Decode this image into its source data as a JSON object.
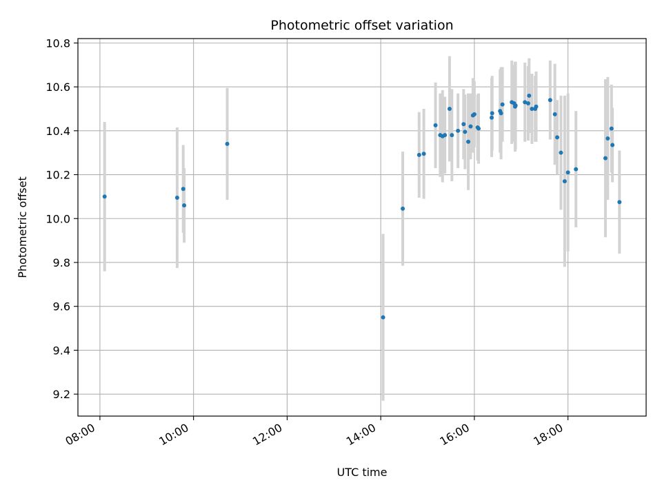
{
  "chart_data": {
    "type": "scatter",
    "title": "Photometric offset variation",
    "xlabel": "UTC time",
    "ylabel": "Photometric offset",
    "x_ticks": [
      "08:00",
      "10:00",
      "12:00",
      "14:00",
      "16:00",
      "18:00"
    ],
    "y_ticks": [
      "9.2",
      "9.4",
      "9.6",
      "9.8",
      "10.0",
      "10.2",
      "10.4",
      "10.6",
      "10.8"
    ],
    "x_tick_hours": [
      8,
      10,
      12,
      14,
      16,
      18
    ],
    "y_tick_values": [
      9.2,
      9.4,
      9.6,
      9.8,
      10.0,
      10.2,
      10.4,
      10.6,
      10.8
    ],
    "xlim_hours": [
      7.53,
      19.67
    ],
    "ylim": [
      9.1,
      10.82
    ],
    "grid": true,
    "colors": {
      "point": "#1f77b4",
      "errorbar": "#d3d3d3",
      "grid": "#b0b0b0"
    },
    "series": [
      {
        "utc_hours": [
          8.1,
          9.65,
          9.78,
          9.8,
          10.72,
          14.05,
          14.47,
          14.82,
          14.92,
          15.17,
          15.27,
          15.32,
          15.37,
          15.47,
          15.52,
          15.65,
          15.77,
          15.8,
          15.87,
          15.92,
          15.97,
          16.0,
          16.07,
          16.09,
          16.37,
          16.38,
          16.55,
          16.57,
          16.6,
          16.8,
          16.85,
          16.87,
          16.88,
          17.08,
          17.15,
          17.17,
          17.23,
          17.3,
          17.32,
          17.62,
          17.72,
          17.77,
          17.85,
          17.93,
          18.0,
          18.17,
          18.8,
          18.85,
          18.93,
          18.95,
          19.1
        ],
        "values": [
          10.1,
          10.095,
          10.135,
          10.06,
          10.34,
          9.55,
          10.045,
          10.29,
          10.295,
          10.425,
          10.38,
          10.375,
          10.38,
          10.5,
          10.38,
          10.4,
          10.43,
          10.395,
          10.35,
          10.42,
          10.47,
          10.475,
          10.415,
          10.41,
          10.46,
          10.48,
          10.49,
          10.48,
          10.52,
          10.53,
          10.525,
          10.51,
          10.515,
          10.53,
          10.525,
          10.56,
          10.5,
          10.5,
          10.51,
          10.54,
          10.475,
          10.37,
          10.3,
          10.17,
          10.21,
          10.225,
          10.275,
          10.365,
          10.41,
          10.335,
          10.075
        ],
        "errors": [
          0.34,
          0.32,
          0.2,
          0.17,
          0.255,
          0.38,
          0.26,
          0.195,
          0.205,
          0.195,
          0.19,
          0.21,
          0.175,
          0.24,
          0.21,
          0.17,
          0.16,
          0.17,
          0.22,
          0.15,
          0.17,
          0.15,
          0.15,
          0.16,
          0.18,
          0.17,
          0.19,
          0.21,
          0.17,
          0.19,
          0.175,
          0.205,
          0.2,
          0.18,
          0.17,
          0.17,
          0.16,
          0.15,
          0.16,
          0.18,
          0.23,
          0.17,
          0.26,
          0.39,
          0.36,
          0.265,
          0.36,
          0.28,
          0.2,
          0.17,
          0.235
        ]
      }
    ]
  }
}
